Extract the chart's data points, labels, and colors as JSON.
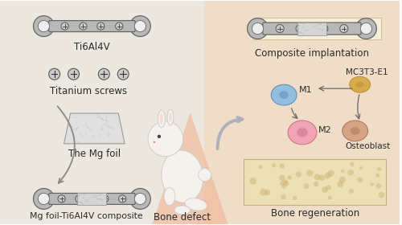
{
  "bg_left": "#ede8df",
  "bg_right": "#f0ddc8",
  "text_color": "#2a2a2a",
  "labels": {
    "ti6al4v": "Ti6Al4V",
    "screws": "Titanium screws",
    "mg_foil": "The Mg foil",
    "composite": "Mg foil-Ti6Al4V composite",
    "implant": "Composite implantation",
    "m1": "M1",
    "m2": "M2",
    "mc3t3": "MC3T3-E1",
    "osteoblast": "Osteoblast",
    "bone_defect": "Bone defect",
    "bone_regen": "Bone regeneration"
  }
}
